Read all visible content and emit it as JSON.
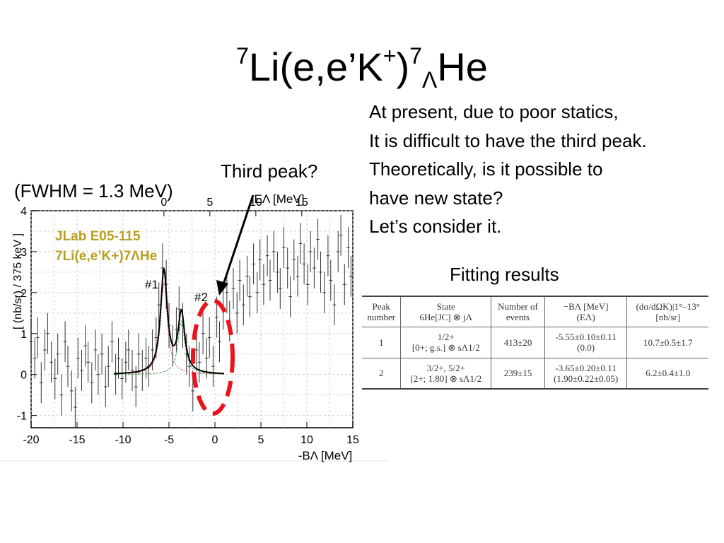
{
  "slide": {
    "title": {
      "pre": "7",
      "a": "Li(e,e’K",
      "plus": "+",
      "b": ")",
      "mass": "7",
      "lam": "Λ",
      "c": "He"
    },
    "fwhm_label": "(FWHM = 1.3 MeV)",
    "third_peak_label": "Third peak?",
    "description": [
      "At present, due to poor statics,",
      "It is difficult to have the third peak.",
      "Theoretically,  is it possible to",
      "have new state?",
      "Let’s consider it."
    ],
    "fitting_results_label": "Fitting results"
  },
  "colors": {
    "highlight_ellipse": "#e8141e",
    "arrow": "#000000",
    "fit_curve": "#000000",
    "component_red": "#d04040",
    "component_green": "#40a040",
    "inset_text": "#b8a020"
  },
  "chart_data": {
    "type": "scatter",
    "title": "",
    "inset_text": [
      "JLab E05-115",
      "7Li(e,e’K+)7ΛHe"
    ],
    "xlabel": "-BΛ [MeV]",
    "x2label": "EΛ [MeV]",
    "ylabel": "[ (nb/sr) / 375 keV ]",
    "xlim": [
      -20,
      15
    ],
    "ylim": [
      -1.3,
      4
    ],
    "x_ticks": [
      -20,
      -15,
      -10,
      -5,
      0,
      5,
      10,
      15
    ],
    "x2_ticks": [
      0,
      5,
      10,
      15
    ],
    "y_ticks": [
      -1,
      0,
      1,
      2,
      3,
      4
    ],
    "grid": true,
    "peak_labels": [
      {
        "text": "#1",
        "x": -5.55
      },
      {
        "text": "#2",
        "x": -3.65
      }
    ],
    "fit_peaks": [
      {
        "center": -5.55,
        "height": 2.5
      },
      {
        "center": -3.65,
        "height": 1.45
      }
    ],
    "fit_range": [
      -11,
      1
    ],
    "points": [
      {
        "x": -20.0,
        "y": 0.8,
        "e": 0.5
      },
      {
        "x": -19.6,
        "y": 0.4,
        "e": 0.5
      },
      {
        "x": -19.3,
        "y": 0.9,
        "e": 0.5
      },
      {
        "x": -18.9,
        "y": -0.2,
        "e": 0.5
      },
      {
        "x": -18.5,
        "y": 0.6,
        "e": 0.5
      },
      {
        "x": -18.2,
        "y": 1.0,
        "e": 0.5
      },
      {
        "x": -17.8,
        "y": 0.3,
        "e": 0.5
      },
      {
        "x": -17.4,
        "y": -0.1,
        "e": 0.5
      },
      {
        "x": -17.1,
        "y": 0.5,
        "e": 0.5
      },
      {
        "x": -16.7,
        "y": -0.5,
        "e": 0.5
      },
      {
        "x": -16.3,
        "y": 0.8,
        "e": 0.5
      },
      {
        "x": -16.0,
        "y": 0.2,
        "e": 0.5
      },
      {
        "x": -15.6,
        "y": -0.4,
        "e": 0.5
      },
      {
        "x": -15.2,
        "y": -0.8,
        "e": 0.5
      },
      {
        "x": -14.9,
        "y": 0.4,
        "e": 0.5
      },
      {
        "x": -14.5,
        "y": 0.1,
        "e": 0.5
      },
      {
        "x": -14.1,
        "y": 0.7,
        "e": 0.5
      },
      {
        "x": -13.8,
        "y": 0.3,
        "e": 0.5
      },
      {
        "x": -13.4,
        "y": -0.2,
        "e": 0.5
      },
      {
        "x": -13.0,
        "y": 0.6,
        "e": 0.5
      },
      {
        "x": -12.7,
        "y": 0.0,
        "e": 0.5
      },
      {
        "x": -12.3,
        "y": 0.5,
        "e": 0.5
      },
      {
        "x": -11.9,
        "y": -0.3,
        "e": 0.5
      },
      {
        "x": -11.6,
        "y": 0.2,
        "e": 0.5
      },
      {
        "x": -11.2,
        "y": 0.8,
        "e": 0.5
      },
      {
        "x": -10.8,
        "y": 0.0,
        "e": 0.5
      },
      {
        "x": -10.5,
        "y": 0.4,
        "e": 0.5
      },
      {
        "x": -10.1,
        "y": -0.1,
        "e": 0.5
      },
      {
        "x": -9.7,
        "y": 0.3,
        "e": 0.5
      },
      {
        "x": -9.4,
        "y": 0.6,
        "e": 0.5
      },
      {
        "x": -9.0,
        "y": 0.1,
        "e": 0.5
      },
      {
        "x": -8.6,
        "y": -0.3,
        "e": 0.5
      },
      {
        "x": -8.3,
        "y": 0.5,
        "e": 0.5
      },
      {
        "x": -7.9,
        "y": 0.1,
        "e": 0.5
      },
      {
        "x": -7.5,
        "y": 0.4,
        "e": 0.5
      },
      {
        "x": -7.2,
        "y": 0.2,
        "e": 0.5
      },
      {
        "x": -6.8,
        "y": 0.6,
        "e": 0.5
      },
      {
        "x": -6.4,
        "y": 0.9,
        "e": 0.5
      },
      {
        "x": -6.1,
        "y": 1.7,
        "e": 0.55
      },
      {
        "x": -5.7,
        "y": 2.6,
        "e": 0.6
      },
      {
        "x": -5.3,
        "y": 2.2,
        "e": 0.6
      },
      {
        "x": -5.0,
        "y": 1.2,
        "e": 0.55
      },
      {
        "x": -4.6,
        "y": 0.7,
        "e": 0.5
      },
      {
        "x": -4.2,
        "y": 1.1,
        "e": 0.55
      },
      {
        "x": -3.9,
        "y": 1.6,
        "e": 0.55
      },
      {
        "x": -3.5,
        "y": 1.2,
        "e": 0.55
      },
      {
        "x": -3.1,
        "y": 0.5,
        "e": 0.5
      },
      {
        "x": -2.8,
        "y": 0.2,
        "e": 0.5
      },
      {
        "x": -2.4,
        "y": -0.4,
        "e": 0.5
      },
      {
        "x": -2.0,
        "y": 0.6,
        "e": 0.5
      },
      {
        "x": -1.7,
        "y": 0.3,
        "e": 0.5
      },
      {
        "x": -1.3,
        "y": 1.0,
        "e": 0.5
      },
      {
        "x": -0.9,
        "y": 0.4,
        "e": 0.5
      },
      {
        "x": -0.6,
        "y": 0.9,
        "e": 0.5
      },
      {
        "x": -0.2,
        "y": 0.2,
        "e": 0.5
      },
      {
        "x": 0.2,
        "y": 1.4,
        "e": 0.5
      },
      {
        "x": 0.5,
        "y": 0.8,
        "e": 0.5
      },
      {
        "x": 0.9,
        "y": 1.6,
        "e": 0.5
      },
      {
        "x": 1.3,
        "y": 2.0,
        "e": 0.5
      },
      {
        "x": 1.6,
        "y": 1.3,
        "e": 0.5
      },
      {
        "x": 2.0,
        "y": 2.1,
        "e": 0.5
      },
      {
        "x": 2.4,
        "y": 1.5,
        "e": 0.5
      },
      {
        "x": 2.7,
        "y": 2.3,
        "e": 0.5
      },
      {
        "x": 3.1,
        "y": 1.7,
        "e": 0.5
      },
      {
        "x": 3.5,
        "y": 2.4,
        "e": 0.5
      },
      {
        "x": 3.8,
        "y": 1.9,
        "e": 0.5
      },
      {
        "x": 4.2,
        "y": 2.7,
        "e": 0.5
      },
      {
        "x": 4.6,
        "y": 2.0,
        "e": 0.5
      },
      {
        "x": 4.9,
        "y": 2.8,
        "e": 0.5
      },
      {
        "x": 5.3,
        "y": 2.2,
        "e": 0.5
      },
      {
        "x": 5.7,
        "y": 2.9,
        "e": 0.5
      },
      {
        "x": 6.0,
        "y": 2.3,
        "e": 0.5
      },
      {
        "x": 6.4,
        "y": 3.0,
        "e": 0.5
      },
      {
        "x": 6.8,
        "y": 2.5,
        "e": 0.5
      },
      {
        "x": 7.1,
        "y": 2.1,
        "e": 0.5
      },
      {
        "x": 7.5,
        "y": 3.1,
        "e": 0.5
      },
      {
        "x": 7.9,
        "y": 2.6,
        "e": 0.5
      },
      {
        "x": 8.2,
        "y": 1.9,
        "e": 0.5
      },
      {
        "x": 8.6,
        "y": 2.8,
        "e": 0.5
      },
      {
        "x": 9.0,
        "y": 2.4,
        "e": 0.5
      },
      {
        "x": 9.3,
        "y": 3.2,
        "e": 0.5
      },
      {
        "x": 9.7,
        "y": 2.7,
        "e": 0.5
      },
      {
        "x": 10.1,
        "y": 2.2,
        "e": 0.5
      },
      {
        "x": 10.4,
        "y": 3.0,
        "e": 0.5
      },
      {
        "x": 10.8,
        "y": 2.6,
        "e": 0.5
      },
      {
        "x": 11.2,
        "y": 3.3,
        "e": 0.5
      },
      {
        "x": 11.5,
        "y": 2.5,
        "e": 0.5
      },
      {
        "x": 11.9,
        "y": 2.0,
        "e": 0.5
      },
      {
        "x": 12.3,
        "y": 2.9,
        "e": 0.5
      },
      {
        "x": 12.6,
        "y": 2.3,
        "e": 0.5
      },
      {
        "x": 13.0,
        "y": 1.7,
        "e": 0.5
      },
      {
        "x": 13.4,
        "y": 3.0,
        "e": 0.5
      },
      {
        "x": 13.7,
        "y": 3.4,
        "e": 0.5
      },
      {
        "x": 14.1,
        "y": 2.2,
        "e": 0.5
      },
      {
        "x": 14.5,
        "y": 3.1,
        "e": 0.5
      },
      {
        "x": 14.8,
        "y": 2.4,
        "e": 0.5
      }
    ]
  },
  "fit_table": {
    "headers_row1": [
      "Peak",
      "State",
      "Number of",
      "−BΛ [MeV]",
      "(dσ/dΩK)|1°–13°"
    ],
    "headers_row2": [
      "number",
      "6He[JC] ⊗ jΛ",
      "events",
      "(EΛ)",
      "[nb/sr]"
    ],
    "rows": [
      {
        "peak": "1",
        "state_a": "1/2+",
        "state_b": "[0+; g.s.] ⊗ sΛ1/2",
        "events": "413±20",
        "b_a": "-5.55±0.10±0.11",
        "b_b": "(0.0)",
        "xs": "10.7±0.5±1.7"
      },
      {
        "peak": "2",
        "state_a": "3/2+, 5/2+",
        "state_b": "[2+; 1.80] ⊗ sΛ1/2",
        "events": "239±15",
        "b_a": "-3.65±0.20±0.11",
        "b_b": "(1.90±0.22±0.05)",
        "xs": "6.2±0.4±1.0"
      }
    ]
  }
}
